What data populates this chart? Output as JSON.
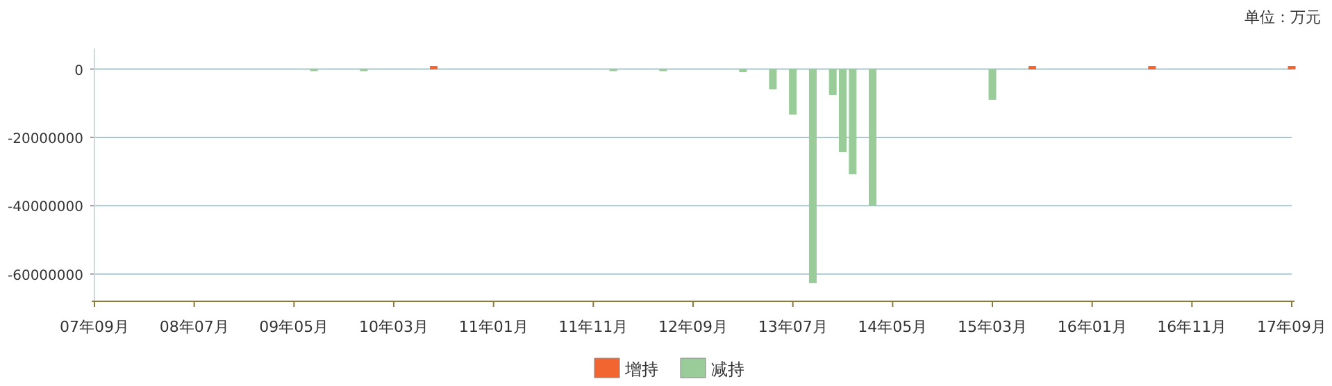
{
  "chart_data": {
    "type": "bar",
    "annotations": [
      "单位：万元"
    ],
    "categories": [
      "07年09月",
      null,
      null,
      null,
      null,
      null,
      null,
      null,
      null,
      null,
      "08年07月",
      null,
      null,
      null,
      null,
      null,
      null,
      null,
      null,
      null,
      "09年05月",
      null,
      null,
      null,
      null,
      null,
      null,
      null,
      null,
      null,
      "10年03月",
      null,
      null,
      null,
      null,
      null,
      null,
      null,
      null,
      null,
      "11年01月",
      null,
      null,
      null,
      null,
      null,
      null,
      null,
      null,
      null,
      "11年11月",
      null,
      null,
      null,
      null,
      null,
      null,
      null,
      null,
      null,
      "12年09月",
      null,
      null,
      null,
      null,
      null,
      null,
      null,
      null,
      null,
      "13年07月",
      null,
      null,
      null,
      null,
      null,
      null,
      null,
      null,
      null,
      "14年05月",
      null,
      null,
      null,
      null,
      null,
      null,
      null,
      null,
      null,
      "15年03月",
      null,
      null,
      null,
      null,
      null,
      null,
      null,
      null,
      null,
      "16年01月",
      null,
      null,
      null,
      null,
      null,
      null,
      null,
      null,
      null,
      "16年11月",
      null,
      null,
      null,
      null,
      null,
      null,
      null,
      null,
      null,
      "17年09月"
    ],
    "series": [
      {
        "name": "增持",
        "color": "#f26531",
        "values": [
          null,
          null,
          null,
          null,
          null,
          null,
          null,
          null,
          null,
          null,
          null,
          null,
          null,
          null,
          null,
          null,
          null,
          null,
          null,
          null,
          null,
          null,
          null,
          null,
          null,
          null,
          null,
          null,
          null,
          null,
          null,
          null,
          null,
          null,
          800000,
          null,
          null,
          null,
          null,
          null,
          null,
          null,
          null,
          null,
          null,
          null,
          null,
          null,
          null,
          null,
          null,
          null,
          null,
          null,
          null,
          null,
          null,
          null,
          null,
          null,
          null,
          null,
          null,
          null,
          null,
          null,
          null,
          null,
          null,
          null,
          null,
          null,
          null,
          null,
          null,
          null,
          null,
          null,
          null,
          null,
          null,
          null,
          null,
          null,
          null,
          null,
          null,
          null,
          null,
          null,
          null,
          null,
          null,
          null,
          800000,
          null,
          null,
          null,
          null,
          null,
          null,
          null,
          null,
          null,
          null,
          null,
          800000,
          null,
          null,
          null,
          null,
          null,
          null,
          null,
          null,
          null,
          null,
          null,
          null,
          null,
          800000
        ]
      },
      {
        "name": "减持",
        "color": "#99cc99",
        "values": [
          null,
          null,
          null,
          null,
          null,
          null,
          null,
          null,
          null,
          null,
          null,
          null,
          null,
          null,
          null,
          null,
          null,
          null,
          null,
          null,
          null,
          null,
          -500000,
          null,
          null,
          null,
          null,
          -500000,
          null,
          null,
          null,
          null,
          null,
          null,
          null,
          null,
          null,
          null,
          null,
          null,
          null,
          null,
          null,
          null,
          null,
          null,
          null,
          null,
          null,
          null,
          null,
          null,
          -500000,
          null,
          null,
          null,
          null,
          -500000,
          null,
          null,
          null,
          null,
          null,
          null,
          null,
          -800000,
          null,
          null,
          -5800000,
          null,
          -13200000,
          null,
          -62600000,
          null,
          -7500000,
          -24200000,
          -30700000,
          null,
          -39900000,
          null,
          null,
          null,
          null,
          null,
          null,
          null,
          null,
          null,
          null,
          null,
          -8900000,
          null,
          null,
          null,
          null,
          null,
          null,
          null,
          null,
          null,
          null,
          null,
          null,
          null,
          null,
          null,
          null,
          null,
          null,
          null,
          null,
          null,
          null,
          null,
          null,
          null,
          null,
          null,
          null,
          null,
          null
        ]
      }
    ],
    "ylim": [
      -68000000,
      6000000
    ],
    "yticks": [
      -60000000,
      -40000000,
      -20000000,
      0
    ],
    "grid": "y",
    "legend": "bottom"
  }
}
